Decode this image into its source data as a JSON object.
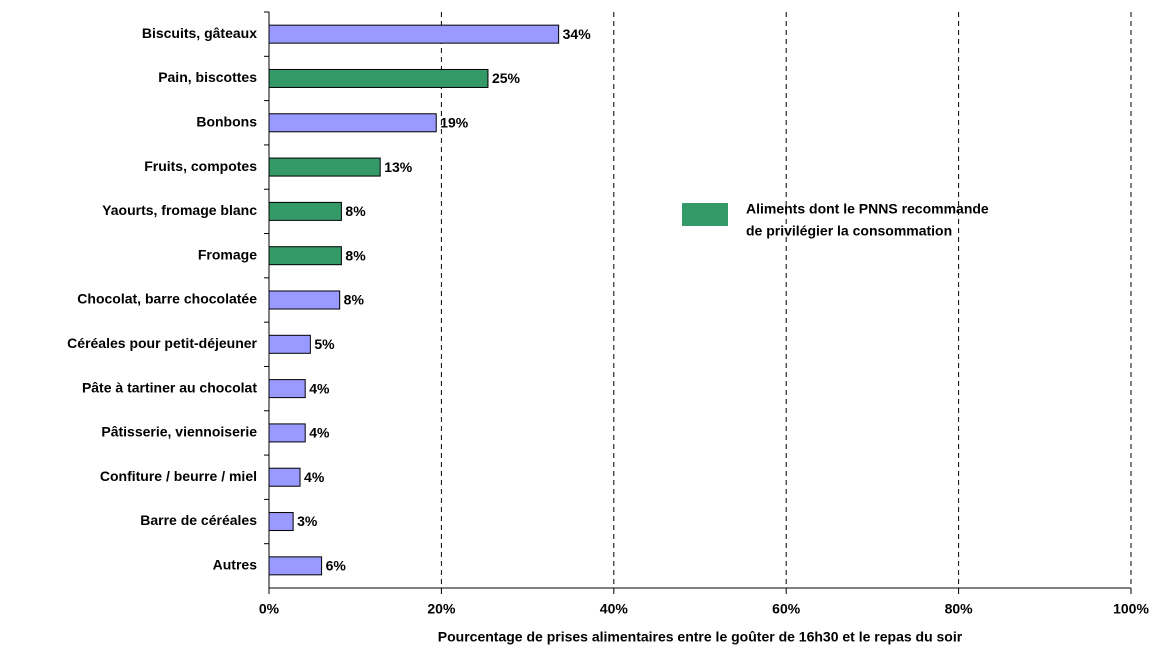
{
  "chart_data": {
    "type": "barh",
    "categories": [
      "Biscuits, gâteaux",
      "Pain, biscottes",
      "Bonbons",
      "Fruits, compotes",
      "Yaourts, fromage blanc",
      "Fromage",
      "Chocolat, barre chocolatée",
      "Céréales pour petit-déjeuner",
      "Pâte à tartiner au chocolat",
      "Pâtisserie, viennoiserie",
      "Confiture / beurre / miel",
      "Barre de céréales",
      "Autres"
    ],
    "values": [
      33.6,
      25.4,
      19.4,
      12.9,
      8.4,
      8.4,
      8.2,
      4.8,
      4.2,
      4.2,
      3.6,
      2.8,
      6.1
    ],
    "value_labels": [
      "34%",
      "25%",
      "19%",
      "13%",
      "8%",
      "8%",
      "8%",
      "5%",
      "4%",
      "4%",
      "4%",
      "3%",
      "6%"
    ],
    "colors": [
      "#9999ff",
      "#339966",
      "#9999ff",
      "#339966",
      "#339966",
      "#339966",
      "#9999ff",
      "#9999ff",
      "#9999ff",
      "#9999ff",
      "#9999ff",
      "#9999ff",
      "#9999ff"
    ],
    "xlabel": "Pourcentage de prises alimentaires entre le goûter de 16h30 et le repas du soir",
    "xlim": [
      0,
      100
    ],
    "xticks": [
      {
        "value": 0,
        "label": "0%"
      },
      {
        "value": 20,
        "label": "20%"
      },
      {
        "value": 40,
        "label": "40%"
      },
      {
        "value": 60,
        "label": "60%"
      },
      {
        "value": 80,
        "label": "80%"
      },
      {
        "value": 100,
        "label": "100%"
      }
    ],
    "grid": true,
    "legend": {
      "label_lines": [
        "Aliments dont le PNNS recommande",
        "de privilégier la consommation"
      ],
      "color": "#339966"
    }
  }
}
